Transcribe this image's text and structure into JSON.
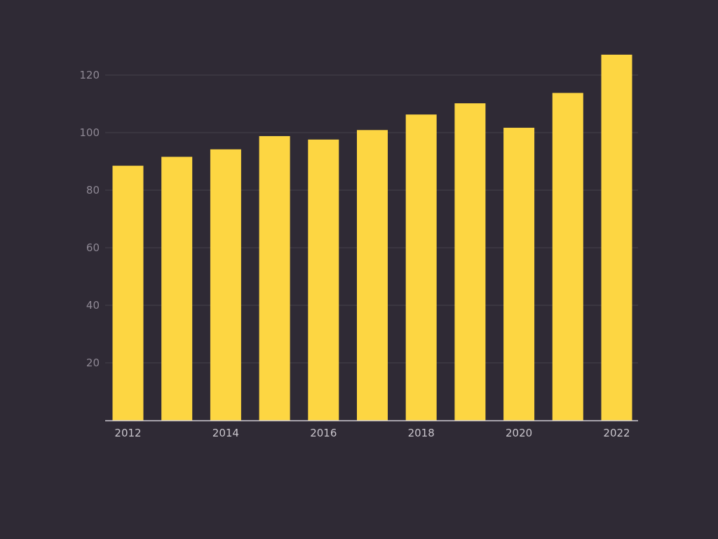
{
  "colors": {
    "background": "#2f2a35",
    "bar": "#fdd642",
    "gridline": "#46414c",
    "axis": "#cfcbd3",
    "y_tick_text": "#8e8894",
    "x_tick_text": "#c9c5cc"
  },
  "chart_data": {
    "type": "bar",
    "title": "",
    "xlabel": "",
    "ylabel": "",
    "categories": [
      "2012",
      "2013",
      "2014",
      "2015",
      "2016",
      "2017",
      "2018",
      "2019",
      "2020",
      "2021",
      "2022"
    ],
    "values": [
      88.5,
      91.6,
      94.2,
      98.8,
      97.6,
      100.9,
      106.3,
      110.2,
      101.7,
      113.8,
      127.1
    ],
    "x_tick_labels": [
      "2012",
      "2014",
      "2016",
      "2018",
      "2020",
      "2022"
    ],
    "y_ticks": [
      20,
      40,
      60,
      80,
      100,
      120
    ],
    "ylim": [
      0,
      130
    ],
    "grid": true,
    "legend": "none"
  }
}
